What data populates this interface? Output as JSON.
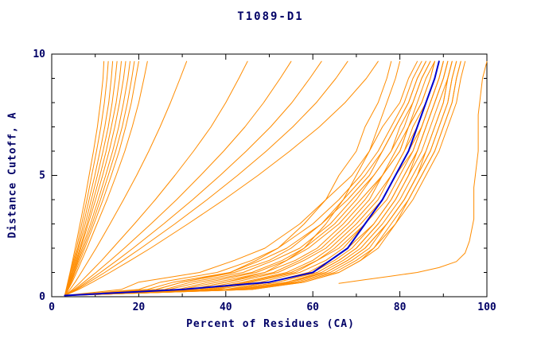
{
  "chart_data": {
    "type": "line",
    "title": "T1089-D1",
    "xlabel": "Percent of Residues (CA)",
    "ylabel": "Distance Cutoff, A",
    "xlim": [
      0,
      100
    ],
    "ylim": [
      0,
      10
    ],
    "grid": false,
    "legend": "none",
    "ticks": {
      "x_major": [
        0,
        20,
        40,
        60,
        80,
        100
      ],
      "x_minor": [
        10,
        30,
        50,
        70,
        90
      ],
      "y_major": [
        0,
        5,
        10
      ],
      "y_minor": [
        1,
        2,
        3,
        4,
        6,
        7,
        8,
        9
      ]
    },
    "colors": {
      "model": "#ff8c00",
      "highlight": "#0000cd",
      "frame": "#000000",
      "text": "#000066",
      "background": "#ffffff"
    },
    "series": {
      "y_levels": [
        0.05,
        0.3,
        0.6,
        1,
        1.5,
        2,
        3,
        4,
        5,
        6,
        7,
        8,
        9,
        9.7
      ],
      "model_curves_x": [
        [
          3,
          3.3,
          3.7,
          4.2,
          4.8,
          5.4,
          6.5,
          7.6,
          8.6,
          9.6,
          10.5,
          11.2,
          11.8,
          12
        ],
        [
          3,
          3.4,
          3.8,
          4.3,
          5,
          5.7,
          6.9,
          8.1,
          9.2,
          10.3,
          11.3,
          12.1,
          12.7,
          13
        ],
        [
          3,
          3.4,
          3.9,
          4.5,
          5.2,
          6,
          7.3,
          8.6,
          9.9,
          11.1,
          12.2,
          13.1,
          13.7,
          14
        ],
        [
          3,
          3.5,
          4,
          4.6,
          5.4,
          6.2,
          7.7,
          9.1,
          10.5,
          11.8,
          13,
          13.9,
          14.6,
          15
        ],
        [
          3,
          3.5,
          4.1,
          4.8,
          5.6,
          6.5,
          8.1,
          9.6,
          11.1,
          12.5,
          13.7,
          14.8,
          15.6,
          16
        ],
        [
          3,
          3.6,
          4.2,
          4.9,
          5.8,
          6.7,
          8.4,
          10.1,
          11.7,
          13.2,
          14.5,
          15.6,
          16.5,
          17
        ],
        [
          3,
          3.6,
          4.3,
          5.1,
          6,
          7,
          8.9,
          10.7,
          12.4,
          14,
          15.4,
          16.5,
          17.5,
          18
        ],
        [
          3,
          3.7,
          4.4,
          5.2,
          6.2,
          7.3,
          9.3,
          11.2,
          13,
          14.7,
          16.2,
          17.4,
          18.4,
          19
        ],
        [
          3,
          3.7,
          4.5,
          5.4,
          6.5,
          7.6,
          9.7,
          11.8,
          13.7,
          15.5,
          17,
          18.3,
          19.3,
          20
        ],
        [
          3,
          3.8,
          4.7,
          5.7,
          6.9,
          8.1,
          10.4,
          12.7,
          14.8,
          16.8,
          18.5,
          20,
          21.2,
          22
        ],
        [
          3,
          4.2,
          5.4,
          6.8,
          8.5,
          10.2,
          13.4,
          16.5,
          19.5,
          22.3,
          24.9,
          27.3,
          29.5,
          31
        ],
        [
          3,
          4.8,
          6.6,
          8.8,
          11.5,
          14,
          19,
          23.8,
          28.3,
          32.6,
          36.6,
          40,
          43,
          45
        ],
        [
          3,
          5.2,
          7.4,
          10.2,
          13.5,
          16.7,
          22.8,
          28.7,
          34.2,
          39.5,
          44.4,
          48.7,
          52.5,
          55
        ],
        [
          3,
          5.5,
          8,
          11.2,
          15,
          18.7,
          25.7,
          32.4,
          38.7,
          44.7,
          50.3,
          55.2,
          59.3,
          62
        ],
        [
          3,
          5.8,
          8.6,
          12.2,
          16.4,
          20.5,
          28.3,
          35.7,
          42.7,
          49.3,
          55.4,
          60.8,
          65.3,
          68
        ],
        [
          3,
          6.2,
          9.4,
          13.4,
          18.1,
          22.7,
          31.3,
          39.6,
          47.4,
          54.7,
          61.5,
          67.4,
          72.3,
          75
        ],
        [
          3,
          24,
          30,
          41,
          47,
          52,
          58,
          63,
          66,
          70,
          72,
          75,
          77,
          78
        ],
        [
          3,
          32,
          40,
          49,
          54,
          58,
          63,
          67,
          70,
          73,
          75,
          77,
          79,
          80
        ],
        [
          3,
          16,
          20,
          34,
          42,
          49,
          57,
          63,
          69,
          73,
          76,
          80,
          82,
          84
        ],
        [
          3,
          20,
          25,
          38,
          46,
          52,
          60,
          66,
          71,
          75,
          78,
          81,
          83,
          85
        ],
        [
          3,
          22,
          28,
          41,
          48,
          54,
          62,
          67,
          72,
          76,
          79,
          82,
          84,
          86
        ],
        [
          3,
          24,
          30,
          42,
          50,
          55,
          62,
          68,
          73,
          76,
          79,
          82,
          84,
          86
        ],
        [
          3,
          26,
          32,
          44,
          51,
          57,
          64,
          69,
          74,
          78,
          80,
          83,
          85,
          87
        ],
        [
          3,
          27,
          34,
          46,
          53,
          58,
          65,
          70,
          74,
          78,
          81,
          83,
          85,
          87
        ],
        [
          3,
          29,
          36,
          47,
          54,
          59,
          66,
          71,
          76,
          79,
          82,
          84,
          86,
          88
        ],
        [
          3,
          30,
          38,
          49,
          56,
          61,
          67,
          72,
          76,
          80,
          82,
          85,
          87,
          88
        ],
        [
          3,
          32,
          40,
          51,
          57,
          62,
          68,
          73,
          76,
          80,
          82,
          85,
          87,
          88
        ],
        [
          3,
          34,
          42,
          52,
          58,
          63,
          69,
          74,
          78,
          81,
          83,
          86,
          88,
          89
        ],
        [
          3,
          35,
          44,
          54,
          60,
          64,
          70,
          75,
          78,
          81,
          84,
          86,
          88,
          89
        ],
        [
          3,
          36,
          45,
          55,
          61,
          65,
          71,
          76,
          79,
          82,
          85,
          87,
          89,
          90
        ],
        [
          3,
          37,
          46,
          56,
          61,
          66,
          72,
          76,
          79,
          83,
          85,
          87,
          89,
          90
        ],
        [
          3,
          38,
          48,
          57,
          63,
          67,
          72,
          77,
          80,
          83,
          85,
          87,
          89,
          90
        ],
        [
          3,
          40,
          50,
          59,
          64,
          68,
          74,
          78,
          81,
          84,
          86,
          88,
          90,
          91
        ],
        [
          3,
          41,
          50,
          60,
          65,
          69,
          74,
          78,
          81,
          84,
          86,
          88,
          90,
          91
        ],
        [
          3,
          42,
          52,
          61,
          66,
          70,
          75,
          79,
          82,
          84,
          86,
          88,
          90,
          91
        ],
        [
          3,
          42,
          52,
          61,
          66,
          70,
          75,
          79,
          82,
          85,
          87,
          89,
          91,
          92
        ],
        [
          3,
          43,
          54,
          62,
          67,
          71,
          76,
          80,
          83,
          86,
          88,
          90,
          91,
          92
        ],
        [
          3,
          44,
          54,
          63,
          68,
          72,
          77,
          81,
          84,
          86,
          88,
          90,
          91,
          92
        ],
        [
          3,
          44,
          55,
          63,
          68,
          72,
          77,
          81,
          84,
          87,
          89,
          91,
          92,
          93
        ],
        [
          3,
          45,
          56,
          64,
          69,
          73,
          77,
          81,
          84,
          87,
          89,
          91,
          92,
          93
        ],
        [
          3,
          46,
          57,
          65,
          70,
          74,
          78,
          82,
          85,
          88,
          90,
          92,
          93,
          94
        ],
        [
          3,
          46,
          58,
          66,
          71,
          74,
          79,
          82,
          85,
          88,
          90,
          92,
          93,
          94
        ],
        [
          3,
          46,
          58,
          66,
          71,
          75,
          79,
          83,
          86,
          89,
          91,
          93,
          94,
          95
        ]
      ],
      "outlier_curve_points": [
        [
          66,
          0.55
        ],
        [
          72,
          0.7
        ],
        [
          78,
          0.85
        ],
        [
          84,
          1.0
        ],
        [
          89,
          1.2
        ],
        [
          93,
          1.45
        ],
        [
          95,
          1.8
        ],
        [
          96,
          2.3
        ],
        [
          97,
          3.2
        ],
        [
          97,
          4.5
        ],
        [
          98,
          6
        ],
        [
          98,
          7.5
        ],
        [
          99,
          9
        ],
        [
          100,
          9.7
        ]
      ],
      "highlight_curve_x": [
        3,
        30,
        50,
        60,
        64,
        68,
        72,
        76,
        79,
        82,
        84,
        86,
        88,
        89
      ]
    }
  }
}
